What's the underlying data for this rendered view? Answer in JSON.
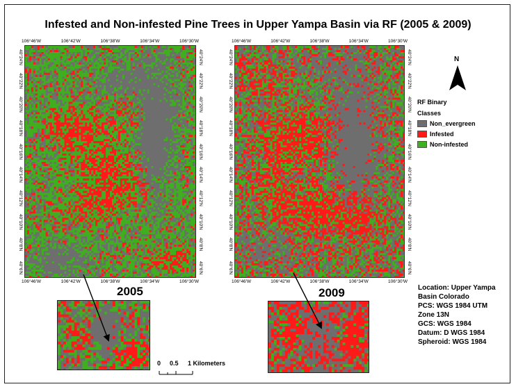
{
  "title": "Infested and Non-infested Pine Trees in Upper Yampa Basin via RF (2005 & 2009)",
  "maps": [
    {
      "year": "2005",
      "top_ticks": [
        "106°46'W",
        "106°42'W",
        "106°38'W",
        "106°34'W",
        "106°30'W"
      ],
      "bottom_ticks": [
        "106°46'W",
        "106°42'W",
        "106°38'W",
        "106°34'W",
        "106°30'W"
      ],
      "side_ticks": [
        "40°24'N",
        "40°22'N",
        "40°20'N",
        "40°18'N",
        "40°16'N",
        "40°14'N",
        "40°12'N",
        "40°10'N",
        "40°8'N",
        "40°6'N"
      ]
    },
    {
      "year": "2009",
      "top_ticks": [
        "106°46'W",
        "106°42'W",
        "106°38'W",
        "106°34'W",
        "106°30'W"
      ],
      "bottom_ticks": [
        "106°46'W",
        "106°42'W",
        "106°38'W",
        "106°34'W",
        "106°30'W"
      ],
      "side_ticks": [
        "40°24'N",
        "40°22'N",
        "40°20'N",
        "40°18'N",
        "40°16'N",
        "40°14'N",
        "40°12'N",
        "40°10'N",
        "40°8'N",
        "40°6'N"
      ]
    }
  ],
  "legend": {
    "title_line1": "RF Binary",
    "title_line2": "Classes",
    "items": [
      {
        "label": "Non_evergreen",
        "color": "#6e6e6e"
      },
      {
        "label": "Infested",
        "color": "#ff1a1a"
      },
      {
        "label": "Non-infested",
        "color": "#3fae1f"
      }
    ]
  },
  "north_arrow": {
    "label": "N"
  },
  "info": [
    "Location: Upper Yampa",
    "Basin Colorado",
    "PCS: WGS 1984 UTM",
    "Zone 13N",
    "GCS: WGS 1984",
    "Datum: D WGS 1984",
    "Spheroid: WGS 1984"
  ],
  "scale_bar": {
    "labels": [
      "0",
      "0.5",
      "1 Kilometers"
    ]
  }
}
